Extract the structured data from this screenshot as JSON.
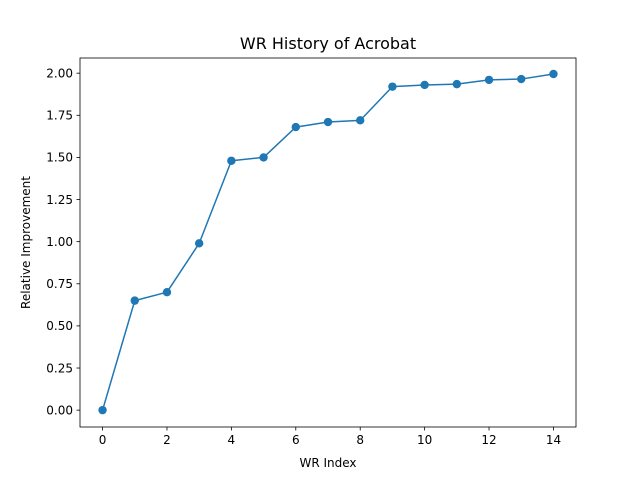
{
  "chart_data": {
    "type": "line",
    "title": "WR History of Acrobat",
    "xlabel": "WR Index",
    "ylabel": "Relative Improvement",
    "xlim": [
      -0.7,
      14.7
    ],
    "ylim": [
      -0.1,
      2.09
    ],
    "xticks": [
      0,
      2,
      4,
      6,
      8,
      10,
      12,
      14
    ],
    "yticks": [
      0.0,
      0.25,
      0.5,
      0.75,
      1.0,
      1.25,
      1.5,
      1.75,
      2.0
    ],
    "xtick_labels": [
      "0",
      "2",
      "4",
      "6",
      "8",
      "10",
      "12",
      "14"
    ],
    "ytick_labels": [
      "0.00",
      "0.25",
      "0.50",
      "0.75",
      "1.00",
      "1.25",
      "1.50",
      "1.75",
      "2.00"
    ],
    "grid": false,
    "legend": false,
    "series": [
      {
        "color": "#1f77b4",
        "marker": "circle",
        "x": [
          0,
          1,
          2,
          3,
          4,
          5,
          6,
          7,
          8,
          9,
          10,
          11,
          12,
          13,
          14
        ],
        "y": [
          0.0,
          0.65,
          0.7,
          0.99,
          1.48,
          1.5,
          1.68,
          1.71,
          1.72,
          1.92,
          1.93,
          1.935,
          1.96,
          1.965,
          1.995
        ]
      }
    ]
  }
}
